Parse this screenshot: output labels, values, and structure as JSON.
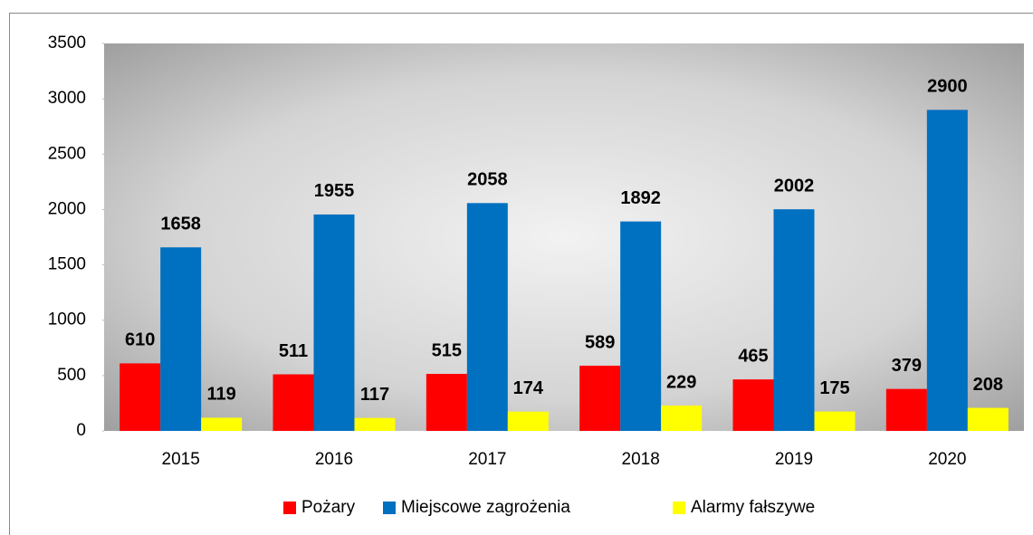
{
  "chart_data": {
    "type": "bar",
    "categories": [
      "2015",
      "2016",
      "2017",
      "2018",
      "2019",
      "2020"
    ],
    "series": [
      {
        "name": "Pożary",
        "color": "#ff0000",
        "values": [
          610,
          511,
          515,
          589,
          465,
          379
        ]
      },
      {
        "name": "Miejscowe zagrożenia",
        "color": "#0070c0",
        "values": [
          1658,
          1955,
          2058,
          1892,
          2002,
          2900
        ]
      },
      {
        "name": "Alarmy fałszywe",
        "color": "#ffff00",
        "values": [
          119,
          117,
          174,
          229,
          175,
          208
        ]
      }
    ],
    "ylim": [
      0,
      3500
    ],
    "yticks": [
      0,
      500,
      1000,
      1500,
      2000,
      2500,
      3000,
      3500
    ],
    "legend": "bottom"
  }
}
